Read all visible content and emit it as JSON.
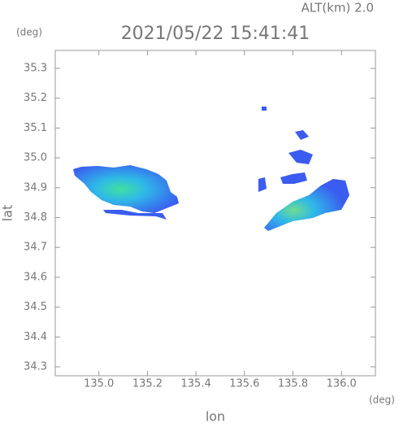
{
  "chart_data": {
    "type": "map",
    "title": "2021/05/22 15:41:41",
    "subtitle": "ALT(km) 2.0",
    "y_unit": "(deg)",
    "x_unit": "(deg)",
    "xlabel": "lon",
    "ylabel": "lat",
    "xlim": [
      134.82,
      136.14
    ],
    "ylim": [
      34.27,
      35.36
    ],
    "xticks": [
      {
        "value": 135,
        "label": "135.0"
      },
      135.2,
      135.4,
      135.6,
      135.8,
      {
        "value": 136,
        "label": "136.0"
      }
    ],
    "yticks": [
      34.3,
      34.4,
      34.5,
      34.6,
      34.7,
      34.8,
      34.9,
      {
        "value": 35,
        "label": "35.0"
      },
      35.1,
      35.2,
      35.3
    ]
  }
}
